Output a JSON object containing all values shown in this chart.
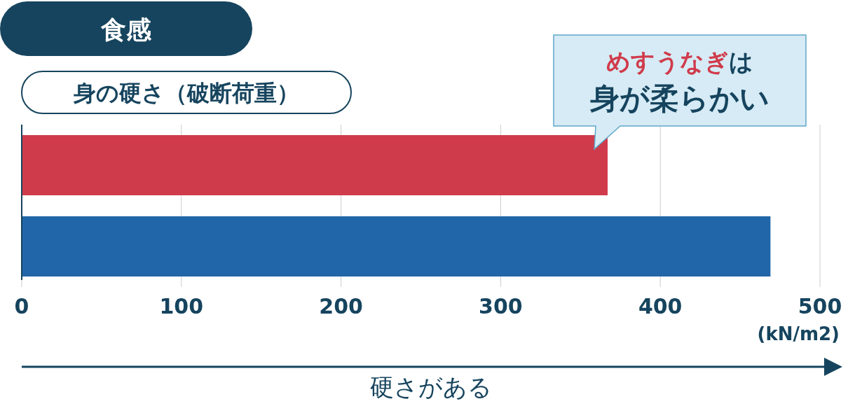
{
  "chart_data": {
    "type": "bar",
    "orientation": "horizontal",
    "title": "食感",
    "subtitle": "身の硬さ（破断荷重）",
    "xlabel": "硬さがある",
    "categories": [
      null,
      null
    ],
    "values": [
      367,
      469
    ],
    "colors": [
      "#d03b4b",
      "#2166a8"
    ],
    "xlim": [
      0,
      500
    ],
    "xticks": [
      0,
      100,
      200,
      300,
      400,
      500
    ],
    "grid": "x",
    "annotations": [
      "めすうなぎ",
      "は",
      "身が柔らかい",
      "(kN/m2)"
    ]
  }
}
